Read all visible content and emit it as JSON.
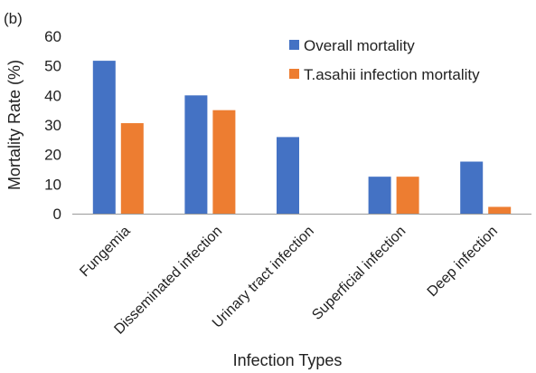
{
  "chart_data": {
    "type": "bar",
    "panel_label": "(b)",
    "title": "",
    "xlabel": "Infection Types",
    "ylabel": "Mortality Rate (%)",
    "ylim": [
      0,
      60
    ],
    "yticks": [
      0,
      10,
      20,
      30,
      40,
      50,
      60
    ],
    "grid": false,
    "legend_position": "top-right",
    "categories": [
      "Fungemia",
      "Disseminated infection",
      "Urinary tract infection",
      "Superficial infection",
      "Deep infection"
    ],
    "series": [
      {
        "name": "Overall mortality",
        "color": "#4472C4",
        "values": [
          51.7,
          40,
          25.9,
          12.5,
          17.6
        ]
      },
      {
        "name": "T.asahii infection mortality",
        "color": "#ED7D31",
        "values": [
          30.6,
          35,
          0,
          12.5,
          2.3
        ]
      }
    ]
  }
}
